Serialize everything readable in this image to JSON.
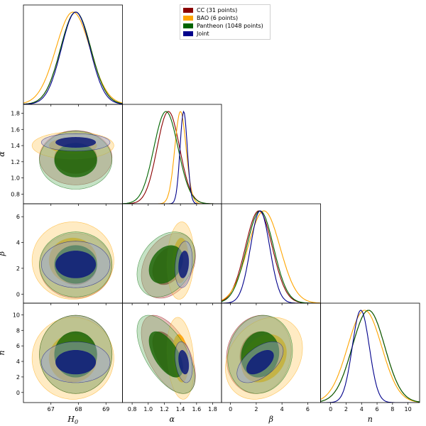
{
  "chart_data": {
    "type": "corner",
    "parameters": [
      {
        "name": "H0",
        "label_main": "H",
        "label_sub": "0",
        "range": [
          66.0,
          69.6
        ],
        "ticks": [
          67,
          68,
          69
        ],
        "tick_labels": [
          "67",
          "68",
          "69"
        ]
      },
      {
        "name": "alpha",
        "label_main": "α",
        "label_sub": "",
        "range": [
          0.68,
          1.91
        ],
        "ticks": [
          0.8,
          1.0,
          1.2,
          1.4,
          1.6,
          1.8
        ],
        "tick_labels": [
          "0.8",
          "1.0",
          "1.2",
          "1.4",
          "1.6",
          "1.8"
        ]
      },
      {
        "name": "beta",
        "label_main": "β",
        "label_sub": "",
        "range": [
          -0.7,
          7.0
        ],
        "ticks": [
          0,
          2,
          4,
          6
        ],
        "tick_labels": [
          "0",
          "2",
          "4",
          "6"
        ]
      },
      {
        "name": "n",
        "label_main": "n",
        "label_sub": "",
        "range": [
          -1.3,
          11.5
        ],
        "ticks": [
          0,
          2,
          4,
          6,
          8,
          10
        ],
        "tick_labels": [
          "0",
          "2",
          "4",
          "6",
          "8",
          "10"
        ]
      }
    ],
    "series": [
      {
        "name": "CC (31 points)",
        "color": "#8b0000",
        "fill_outer": "#c96a6a",
        "fill_inner": "#8b1a1a",
        "mean": [
          67.9,
          1.25,
          2.2,
          4.9
        ],
        "sd": [
          0.55,
          0.14,
          1.05,
          2.1
        ],
        "corr": {
          "1_3": -0.55,
          "1_2": 0.3,
          "2_3": 0.1
        }
      },
      {
        "name": "BAO (6 points)",
        "color": "#ffa500",
        "fill_outer": "#ffd27a",
        "fill_inner": "#ffa500",
        "mean": [
          67.8,
          1.4,
          2.6,
          4.4
        ],
        "sd": [
          0.62,
          0.07,
          1.25,
          2.2
        ],
        "corr": {
          "1_3": -0.2,
          "1_2": 0.1,
          "2_3": 0.25
        }
      },
      {
        "name": "Pantheon (1048 points)",
        "color": "#006400",
        "fill_outer": "#7fbf7f",
        "fill_inner": "#1f6a0a",
        "mean": [
          67.9,
          1.22,
          2.3,
          4.9
        ],
        "sd": [
          0.55,
          0.15,
          1.05,
          2.1
        ],
        "corr": {
          "1_3": -0.6,
          "1_2": 0.3,
          "2_3": 0.1
        }
      },
      {
        "name": "Joint",
        "color": "#00008b",
        "fill_outer": "#9aa4d8",
        "fill_inner": "#0a1a7a",
        "mean": [
          67.9,
          1.44,
          2.3,
          3.9
        ],
        "sd": [
          0.52,
          0.045,
          0.75,
          1.1
        ],
        "corr": {
          "1_3": -0.3,
          "1_2": 0.2,
          "2_3": 0.55
        }
      }
    ],
    "legend_position": "top-right"
  },
  "legend": {
    "items": [
      {
        "label": "CC (31 points)",
        "color": "#8b0000"
      },
      {
        "label": "BAO (6 points)",
        "color": "#ffa500"
      },
      {
        "label": "Pantheon (1048 points)",
        "color": "#006400"
      },
      {
        "label": "Joint",
        "color": "#00008b"
      }
    ]
  }
}
